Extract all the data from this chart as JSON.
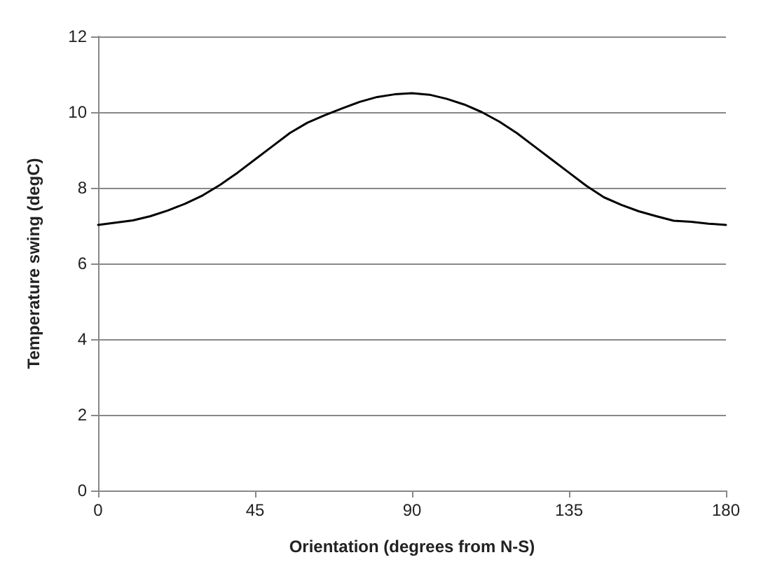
{
  "chart_data": {
    "type": "line",
    "xlabel": "Orientation (degrees from N-S)",
    "ylabel": "Temperature swing (degC)",
    "x": [
      0,
      5,
      10,
      15,
      20,
      25,
      30,
      35,
      40,
      45,
      50,
      55,
      60,
      65,
      70,
      75,
      80,
      85,
      90,
      95,
      100,
      105,
      110,
      115,
      120,
      125,
      130,
      135,
      140,
      145,
      150,
      155,
      160,
      165,
      170,
      175,
      180
    ],
    "series": [
      {
        "color": "#000000",
        "values": [
          7.02,
          7.08,
          7.14,
          7.25,
          7.4,
          7.58,
          7.8,
          8.08,
          8.4,
          8.75,
          9.1,
          9.45,
          9.72,
          9.92,
          10.1,
          10.27,
          10.4,
          10.47,
          10.5,
          10.46,
          10.35,
          10.2,
          10.0,
          9.75,
          9.45,
          9.1,
          8.75,
          8.4,
          8.05,
          7.75,
          7.55,
          7.38,
          7.25,
          7.13,
          7.1,
          7.05,
          7.02
        ]
      }
    ],
    "xlim": [
      0,
      180
    ],
    "xticks": [
      0,
      45,
      90,
      135,
      180
    ],
    "ylim": [
      0,
      12
    ],
    "yticks": [
      0,
      2,
      4,
      6,
      8,
      10,
      12
    ],
    "grid": "y",
    "marker": "none",
    "line_style": "solid"
  }
}
